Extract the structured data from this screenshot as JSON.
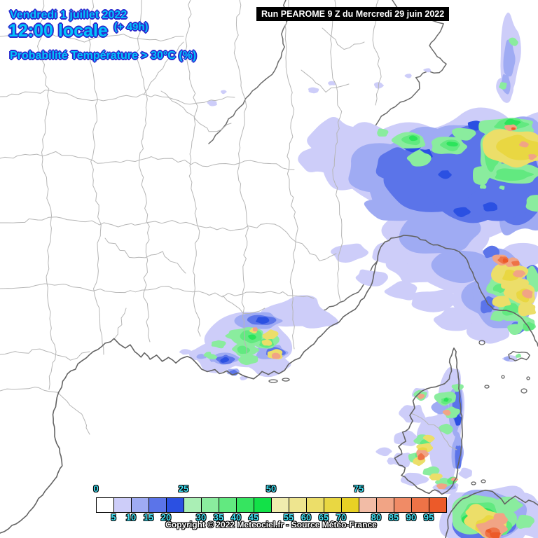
{
  "header": {
    "date": "Vendredi 1 juillet 2022",
    "time": "12:00 locale",
    "offset": "(+ 49h)",
    "variable": "Probabilité Température > 30°C (%)"
  },
  "run_info": {
    "label": "Run PEAROME 9 Z du Mercredi 29 juin 2022"
  },
  "copyright": "Copyright © 2022 Meteociel.fr - Source Météo-France",
  "colors": {
    "title_text": "#00c4fa",
    "title_outline": "#2a2ace",
    "tick_text": "#3fe1f5",
    "land": "#ffffff",
    "department_border": "#b6b6b6",
    "coastline": "#666666"
  },
  "legend": {
    "unit": "%",
    "ticks_top": [
      0,
      25,
      50,
      75
    ],
    "ticks_bottom": [
      5,
      10,
      15,
      20,
      30,
      35,
      40,
      45,
      55,
      60,
      65,
      70,
      80,
      85,
      90,
      95
    ],
    "boxes": [
      {
        "min": 0,
        "color": "#ffffff"
      },
      {
        "min": 5,
        "color": "#cdcdf9"
      },
      {
        "min": 10,
        "color": "#9fabf3"
      },
      {
        "min": 15,
        "color": "#5b74e9"
      },
      {
        "min": 20,
        "color": "#2b50e2"
      },
      {
        "min": 25,
        "color": "#aaefb5"
      },
      {
        "min": 30,
        "color": "#8aec9e"
      },
      {
        "min": 35,
        "color": "#62e980"
      },
      {
        "min": 40,
        "color": "#36e460"
      },
      {
        "min": 45,
        "color": "#12e148"
      },
      {
        "min": 50,
        "color": "#f0ecae"
      },
      {
        "min": 55,
        "color": "#eee58f"
      },
      {
        "min": 60,
        "color": "#ecde69"
      },
      {
        "min": 65,
        "color": "#e9d742"
      },
      {
        "min": 70,
        "color": "#e8d125"
      },
      {
        "min": 75,
        "color": "#f2bca6"
      },
      {
        "min": 80,
        "color": "#f1a485"
      },
      {
        "min": 85,
        "color": "#f08b66"
      },
      {
        "min": 90,
        "color": "#ee7347"
      },
      {
        "min": 95,
        "color": "#ec5a29"
      }
    ]
  }
}
